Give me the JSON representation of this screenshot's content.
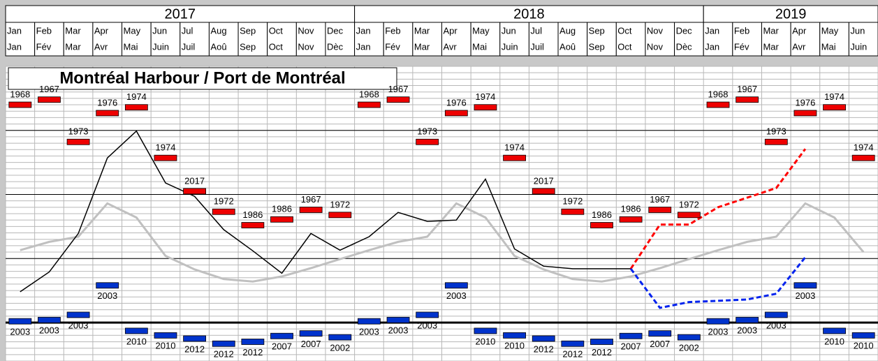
{
  "header": {
    "years": [
      {
        "year": "2017",
        "months": [
          {
            "en": "Jan",
            "fr": "Jan"
          },
          {
            "en": "Feb",
            "fr": "Fév"
          },
          {
            "en": "Mar",
            "fr": "Mar"
          },
          {
            "en": "Apr",
            "fr": "Avr"
          },
          {
            "en": "May",
            "fr": "Mai"
          },
          {
            "en": "Jun",
            "fr": "Juin"
          },
          {
            "en": "Jul",
            "fr": "Juil"
          },
          {
            "en": "Aug",
            "fr": "Aoû"
          },
          {
            "en": "Sep",
            "fr": "Sep"
          },
          {
            "en": "Oct",
            "fr": "Oct"
          },
          {
            "en": "Nov",
            "fr": "Nov"
          },
          {
            "en": "Dec",
            "fr": "Dèc"
          }
        ]
      },
      {
        "year": "2018",
        "months": [
          {
            "en": "Jan",
            "fr": "Jan"
          },
          {
            "en": "Feb",
            "fr": "Fév"
          },
          {
            "en": "Mar",
            "fr": "Mar"
          },
          {
            "en": "Apr",
            "fr": "Avr"
          },
          {
            "en": "May",
            "fr": "Mai"
          },
          {
            "en": "Jun",
            "fr": "Juin"
          },
          {
            "en": "Jul",
            "fr": "Juil"
          },
          {
            "en": "Aug",
            "fr": "Aoû"
          },
          {
            "en": "Sep",
            "fr": "Sep"
          },
          {
            "en": "Oct",
            "fr": "Oct"
          },
          {
            "en": "Nov",
            "fr": "Nov"
          },
          {
            "en": "Dec",
            "fr": "Dèc"
          }
        ]
      },
      {
        "year": "2019",
        "months": [
          {
            "en": "Jan",
            "fr": "Jan"
          },
          {
            "en": "Feb",
            "fr": "Fév"
          },
          {
            "en": "Mar",
            "fr": "Mar"
          },
          {
            "en": "Apr",
            "fr": "Avr"
          },
          {
            "en": "May",
            "fr": "Mai"
          },
          {
            "en": "Jun",
            "fr": "Juin"
          }
        ]
      }
    ]
  },
  "chart_data": {
    "type": "line",
    "title": "Montréal Harbour / Port de Montréal",
    "ylim": [
      -0.6,
      4
    ],
    "yticks": [
      0,
      1,
      2,
      3
    ],
    "grid": true,
    "series": [
      {
        "style": "line",
        "color": "#c0c0c0",
        "values": [
          1.13,
          1.26,
          1.34,
          1.86,
          1.64,
          1.04,
          0.83,
          0.68,
          0.64,
          0.72,
          0.85,
          0.99,
          1.13,
          1.26,
          1.34,
          1.86,
          1.64,
          1.04,
          0.83,
          0.68,
          0.64,
          0.72,
          0.85,
          0.99,
          1.13,
          1.26,
          1.34,
          1.86,
          1.64,
          1.1
        ]
      },
      {
        "style": "line",
        "color": "#000000",
        "values": [
          0.48,
          0.79,
          1.39,
          2.57,
          2.99,
          2.18,
          1.97,
          1.45,
          1.12,
          0.77,
          1.39,
          1.13,
          1.34,
          1.72,
          1.58,
          1.6,
          2.24,
          1.15,
          0.88,
          0.84,
          0.84,
          0.84,
          null,
          null,
          null,
          null,
          null,
          null,
          null,
          null
        ]
      },
      {
        "style": "dashed",
        "color": "#ff0000",
        "values": [
          null,
          null,
          null,
          null,
          null,
          null,
          null,
          null,
          null,
          null,
          null,
          null,
          null,
          null,
          null,
          null,
          null,
          null,
          null,
          null,
          null,
          0.84,
          1.53,
          1.53,
          1.8,
          1.95,
          2.1,
          2.71,
          null,
          null
        ]
      },
      {
        "style": "dashed",
        "color": "#0022ee",
        "values": [
          null,
          null,
          null,
          null,
          null,
          null,
          null,
          null,
          null,
          null,
          null,
          null,
          null,
          null,
          null,
          null,
          null,
          null,
          null,
          null,
          null,
          0.84,
          0.23,
          0.32,
          0.34,
          0.36,
          0.45,
          1.02,
          null,
          null
        ]
      },
      {
        "style": "marker",
        "color": "#ee0000",
        "label_side": "above",
        "values": [
          3.4,
          3.48,
          2.82,
          3.27,
          3.36,
          2.57,
          2.05,
          1.73,
          1.52,
          1.61,
          1.76,
          1.68,
          3.4,
          3.48,
          2.82,
          3.27,
          3.36,
          2.57,
          2.05,
          1.73,
          1.52,
          1.61,
          1.76,
          1.68,
          3.4,
          3.48,
          2.82,
          3.27,
          3.36,
          2.57
        ],
        "record_years": [
          "1968",
          "1967",
          "1973",
          "1976",
          "1974",
          "1974",
          "2017",
          "1972",
          "1986",
          "1986",
          "1967",
          "1972",
          "1968",
          "1967",
          "1973",
          "1976",
          "1974",
          "1974",
          "2017",
          "1972",
          "1986",
          "1986",
          "1967",
          "1972",
          "1968",
          "1967",
          "1973",
          "1976",
          "1974",
          "1974"
        ]
      },
      {
        "style": "marker",
        "color": "#0033cc",
        "label_side": "below",
        "values": [
          0.02,
          0.04,
          0.12,
          0.58,
          -0.13,
          -0.2,
          -0.25,
          -0.33,
          -0.3,
          -0.21,
          -0.17,
          -0.23,
          0.02,
          0.04,
          0.12,
          0.58,
          -0.13,
          -0.2,
          -0.25,
          -0.33,
          -0.3,
          -0.21,
          -0.17,
          -0.23,
          0.02,
          0.04,
          0.12,
          0.58,
          -0.13,
          -0.2
        ],
        "record_years": [
          "2003",
          "2003",
          "2003",
          "2003",
          "2010",
          "2010",
          "2012",
          "2012",
          "2012",
          "2007",
          "2007",
          "2002",
          "2003",
          "2003",
          "2003",
          "2003",
          "2010",
          "2010",
          "2012",
          "2012",
          "2012",
          "2007",
          "2007",
          "2002",
          "2003",
          "2003",
          "2003",
          "2003",
          "2010",
          "2010"
        ]
      }
    ]
  }
}
